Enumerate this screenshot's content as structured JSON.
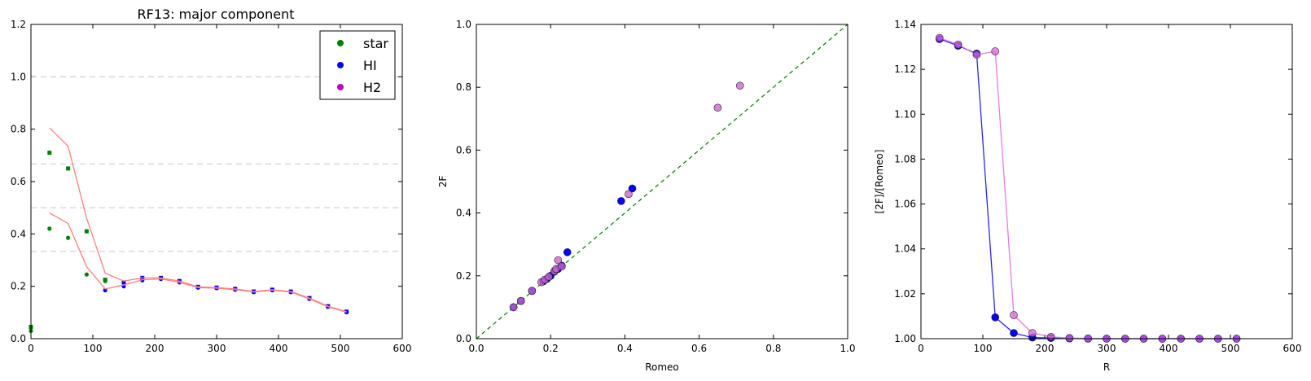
{
  "chart_data": [
    {
      "type": "scatter",
      "title": "RF13: major component",
      "xlabel": "",
      "ylabel": "",
      "xlim": [
        0,
        600
      ],
      "ylim": [
        0,
        1.2
      ],
      "xticks": [
        0,
        100,
        200,
        300,
        400,
        500,
        600
      ],
      "yticks": [
        0.0,
        0.2,
        0.4,
        0.6,
        0.8,
        1.0,
        1.2
      ],
      "grid": false,
      "hlines": [
        1.0,
        0.6667,
        0.5,
        0.3333
      ],
      "legend": {
        "placement": "top-right",
        "entries": [
          "star",
          "HI",
          "H2"
        ]
      },
      "series": [
        {
          "name": "star",
          "color": "#008000",
          "marker": "circle",
          "x": [
            0,
            30,
            60,
            90,
            120
          ],
          "y": [
            0.03,
            0.42,
            0.385,
            0.245,
            0.22
          ]
        },
        {
          "name": "star",
          "color": "#008000",
          "marker": "square",
          "x": [
            0,
            30,
            60,
            90,
            120
          ],
          "y": [
            0.045,
            0.71,
            0.65,
            0.41,
            0.225
          ]
        },
        {
          "name": "HI",
          "color": "#0000ff",
          "marker": "circle",
          "x": [
            120,
            150,
            180,
            210,
            240,
            270,
            300,
            330,
            360,
            390,
            420,
            450,
            480,
            510
          ],
          "y": [
            0.185,
            0.2,
            0.223,
            0.228,
            0.215,
            0.195,
            0.193,
            0.187,
            0.178,
            0.185,
            0.178,
            0.152,
            0.122,
            0.101
          ]
        },
        {
          "name": "HI",
          "color": "#0000ff",
          "marker": "square",
          "x": [
            150,
            180,
            210,
            240,
            270,
            300,
            330,
            360,
            390,
            420,
            450,
            480,
            510
          ],
          "y": [
            0.215,
            0.232,
            0.232,
            0.22,
            0.198,
            0.195,
            0.19,
            0.18,
            0.187,
            0.18,
            0.155,
            0.124,
            0.103
          ]
        },
        {
          "name": "",
          "color": "#ff8080",
          "marker": "line",
          "x": [
            30,
            60,
            90,
            120,
            150,
            180,
            210,
            240,
            270,
            300,
            330,
            360,
            390,
            420,
            450,
            480,
            510
          ],
          "y": [
            0.805,
            0.735,
            0.46,
            0.25,
            0.22,
            0.232,
            0.232,
            0.22,
            0.198,
            0.195,
            0.19,
            0.18,
            0.187,
            0.18,
            0.155,
            0.124,
            0.103
          ]
        },
        {
          "name": "",
          "color": "#ff8080",
          "marker": "line",
          "x": [
            30,
            60,
            90,
            120,
            150,
            180,
            210,
            240,
            270,
            300,
            330,
            360,
            390,
            420,
            450,
            480,
            510
          ],
          "y": [
            0.48,
            0.44,
            0.275,
            0.19,
            0.205,
            0.225,
            0.228,
            0.215,
            0.195,
            0.193,
            0.187,
            0.178,
            0.185,
            0.178,
            0.152,
            0.122,
            0.101
          ]
        },
        {
          "name": "H2",
          "color": "#bf00bf",
          "marker": "circle",
          "x": [],
          "y": []
        }
      ]
    },
    {
      "type": "scatter",
      "title": "",
      "xlabel": "Romeo",
      "ylabel": "2F",
      "xlim": [
        0,
        1
      ],
      "ylim": [
        0,
        1
      ],
      "xticks": [
        0.0,
        0.2,
        0.4,
        0.6,
        0.8,
        1.0
      ],
      "yticks": [
        0.0,
        0.2,
        0.4,
        0.6,
        0.8,
        1.0
      ],
      "grid": false,
      "diagonal": {
        "color": "#008000",
        "dash": true
      },
      "series": [
        {
          "name": "",
          "color": "#0000ff",
          "x": [
            0.1,
            0.12,
            0.15,
            0.18,
            0.19,
            0.2,
            0.21,
            0.22,
            0.23,
            0.245,
            0.39,
            0.42
          ],
          "y": [
            0.1,
            0.12,
            0.152,
            0.182,
            0.19,
            0.2,
            0.213,
            0.222,
            0.232,
            0.275,
            0.438,
            0.478
          ]
        },
        {
          "name": "",
          "color": "#cc66cc",
          "x": [
            0.1,
            0.12,
            0.15,
            0.175,
            0.185,
            0.195,
            0.21,
            0.215,
            0.22,
            0.23,
            0.41,
            0.65,
            0.71
          ],
          "y": [
            0.1,
            0.12,
            0.152,
            0.18,
            0.188,
            0.197,
            0.215,
            0.222,
            0.25,
            0.23,
            0.46,
            0.735,
            0.805
          ]
        }
      ]
    },
    {
      "type": "line",
      "title": "",
      "xlabel": "R",
      "ylabel": "[2F]/[Romeo]",
      "xlim": [
        0,
        600
      ],
      "ylim": [
        1.0,
        1.14
      ],
      "xticks": [
        0,
        100,
        200,
        300,
        400,
        500,
        600
      ],
      "yticks": [
        1.0,
        1.02,
        1.04,
        1.06,
        1.08,
        1.1,
        1.12,
        1.14
      ],
      "grid": false,
      "series": [
        {
          "name": "",
          "color": "#0000ff",
          "x": [
            30,
            60,
            90,
            120,
            150,
            180,
            210,
            240,
            270,
            300,
            330,
            360,
            390,
            420,
            450,
            480,
            510
          ],
          "y": [
            1.1335,
            1.1305,
            1.127,
            1.0095,
            1.0025,
            1.0005,
            1.0003,
            1.0001,
            1.0,
            1.0,
            1.0,
            1.0,
            1.0,
            1.0,
            1.0,
            1.0,
            1.0
          ]
        },
        {
          "name": "",
          "color": "#dd66dd",
          "x": [
            30,
            60,
            90,
            120,
            150,
            180,
            210,
            240,
            270,
            300,
            330,
            360,
            390,
            420,
            450,
            480,
            510
          ],
          "y": [
            1.134,
            1.131,
            1.1265,
            1.128,
            1.0105,
            1.0025,
            1.0008,
            1.0003,
            1.0001,
            1.0,
            1.0,
            1.0,
            1.0,
            1.0,
            1.0,
            1.0,
            1.0
          ]
        }
      ]
    }
  ]
}
